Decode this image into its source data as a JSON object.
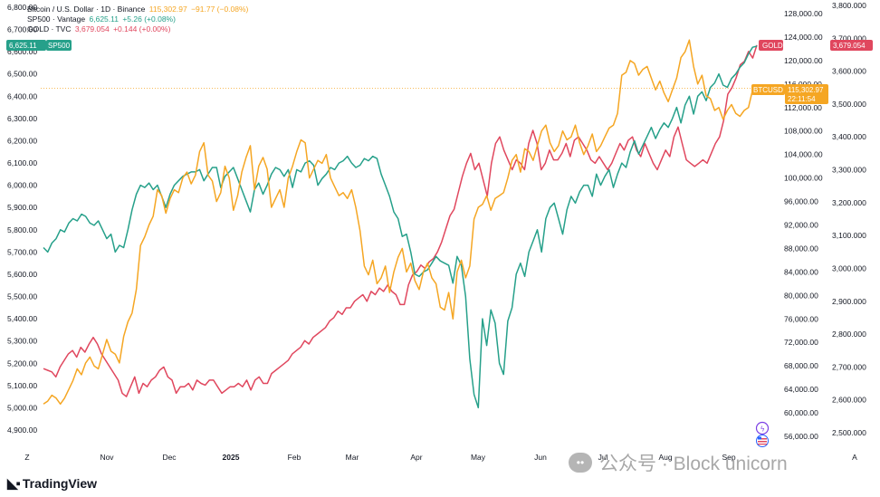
{
  "legend": {
    "btc": {
      "name": "Bitcoin / U.S. Dollar · 1D · Binance",
      "value": "115,302.97",
      "change": "−91.77 (−0.08%)"
    },
    "spx": {
      "name": "SP500 · Vantage",
      "value": "6,625.11",
      "change": "+5.26 (+0.08%)"
    },
    "gold": {
      "name": "GOLD · TVC",
      "value": "3,679.054",
      "change": "+0.144 (+0.00%)"
    }
  },
  "colors": {
    "btc": "#f5a623",
    "spx": "#26a08a",
    "gold": "#e0475e",
    "text": "#131722",
    "watermark": "#a8a8a8"
  },
  "tags": {
    "spx_value": "6,625.11",
    "spx_label": "SP500",
    "gold_label": "GOLD",
    "gold_value": "3,679.054",
    "btc_label": "BTCUSD",
    "btc_value": "115,302.97",
    "btc_timer": "22:11:54"
  },
  "brand": "TradingView",
  "watermark": "公众号 · Block unicorn",
  "chart_data": {
    "type": "line",
    "x_ticks": [
      "Z",
      "Nov",
      "Dec",
      "2025",
      "Feb",
      "Mar",
      "Apr",
      "May",
      "Jun",
      "Jul",
      "Aug",
      "Sep",
      "A"
    ],
    "axes": {
      "spx": {
        "side": "left",
        "ylim": [
          4900,
          6800
        ],
        "ticks": [
          "6,800.00",
          "6,700.00",
          "6,600.00",
          "6,500.00",
          "6,400.00",
          "6,300.00",
          "6,200.00",
          "6,100.00",
          "6,000.00",
          "5,900.00",
          "5,800.00",
          "5,700.00",
          "5,600.00",
          "5,500.00",
          "5,400.00",
          "5,300.00",
          "5,200.00",
          "5,100.00",
          "5,000.00",
          "4,900.00"
        ]
      },
      "btc": {
        "side": "right-inner",
        "ylim": [
          56000,
          128000
        ],
        "ticks": [
          "128,000.00",
          "124,000.00",
          "120,000.00",
          "116,000.00",
          "112,000.00",
          "108,000.00",
          "104,000.00",
          "100,000.00",
          "96,000.00",
          "92,000.00",
          "88,000.00",
          "84,000.00",
          "80,000.00",
          "76,000.00",
          "72,000.00",
          "68,000.00",
          "64,000.00",
          "60,000.00",
          "56,000.00"
        ]
      },
      "gold": {
        "side": "right-outer",
        "ylim": [
          2500,
          3800
        ],
        "ticks": [
          "3,800.000",
          "3,700.000",
          "3,600.000",
          "3,500.000",
          "3,400.000",
          "3,300.000",
          "3,200.000",
          "3,100.000",
          "3,000.000",
          "2,900.000",
          "2,800.000",
          "2,700.000",
          "2,600.000",
          "2,500.000"
        ]
      }
    },
    "series": [
      {
        "name": "SP500",
        "axis": "spx",
        "color": "#26a08a",
        "values": [
          5720,
          5700,
          5740,
          5760,
          5800,
          5790,
          5830,
          5850,
          5840,
          5870,
          5860,
          5830,
          5820,
          5840,
          5800,
          5760,
          5780,
          5700,
          5730,
          5720,
          5800,
          5890,
          5960,
          6000,
          5990,
          6010,
          5980,
          6000,
          5950,
          5900,
          5960,
          6000,
          6020,
          6040,
          6050,
          6060,
          6060,
          6070,
          6020,
          6050,
          6080,
          6080,
          5990,
          6040,
          6060,
          6080,
          6030,
          5980,
          5930,
          5880,
          5980,
          6010,
          5960,
          6000,
          6050,
          6080,
          6070,
          6040,
          6070,
          5990,
          6070,
          6060,
          6100,
          6110,
          6090,
          6000,
          6030,
          6050,
          6080,
          6070,
          6100,
          6110,
          6130,
          6100,
          6080,
          6090,
          6120,
          6110,
          6130,
          6120,
          6050,
          6000,
          5950,
          5880,
          5850,
          5770,
          5780,
          5700,
          5600,
          5590,
          5610,
          5620,
          5650,
          5680,
          5660,
          5650,
          5640,
          5560,
          5680,
          5640,
          5500,
          5220,
          5060,
          5000,
          5400,
          5280,
          5440,
          5380,
          5200,
          5150,
          5390,
          5450,
          5600,
          5650,
          5590,
          5700,
          5750,
          5800,
          5700,
          5850,
          5900,
          5920,
          5850,
          5780,
          5890,
          5950,
          5920,
          5970,
          6000,
          6000,
          5950,
          6050,
          6000,
          6040,
          6070,
          5990,
          6050,
          6100,
          6080,
          6150,
          6200,
          6140,
          6180,
          6220,
          6260,
          6210,
          6250,
          6280,
          6260,
          6300,
          6350,
          6280,
          6360,
          6400,
          6320,
          6400,
          6420,
          6380,
          6440,
          6460,
          6500,
          6450,
          6440,
          6480,
          6500,
          6530,
          6550,
          6590,
          6620,
          6625
        ]
      },
      {
        "name": "BTCUSD",
        "axis": "btc",
        "color": "#f5a623",
        "values": [
          61500,
          62000,
          63000,
          62500,
          61500,
          62500,
          64000,
          65500,
          67500,
          66500,
          68500,
          69500,
          68000,
          67500,
          70000,
          72500,
          70500,
          70000,
          68500,
          73000,
          75500,
          77000,
          81000,
          88500,
          90000,
          92000,
          93500,
          98000,
          97000,
          94000,
          96500,
          98000,
          97500,
          100000,
          101000,
          99000,
          100500,
          104500,
          106000,
          100500,
          99500,
          96000,
          97500,
          102000,
          100000,
          94500,
          97000,
          101000,
          103500,
          105500,
          98000,
          102000,
          103500,
          101500,
          95000,
          96500,
          98000,
          95000,
          100000,
          102000,
          104500,
          106500,
          106000,
          100000,
          101500,
          103000,
          102500,
          104000,
          100000,
          98500,
          97000,
          97500,
          96500,
          98000,
          95000,
          91000,
          85000,
          83500,
          86000,
          82000,
          83000,
          85000,
          80500,
          84000,
          86500,
          88000,
          84000,
          85500,
          82500,
          81000,
          84000,
          85500,
          83000,
          82000,
          78000,
          77500,
          80500,
          76000,
          84000,
          86000,
          83000,
          85000,
          93000,
          95000,
          95500,
          97000,
          94500,
          96500,
          97000,
          97500,
          100000,
          103000,
          104000,
          101000,
          105000,
          104500,
          103000,
          105500,
          108000,
          109000,
          106000,
          104500,
          105500,
          108000,
          106500,
          107000,
          109000,
          106000,
          104000,
          105500,
          107500,
          104500,
          105500,
          107000,
          108500,
          109000,
          111000,
          117500,
          118000,
          120000,
          119500,
          117500,
          118500,
          119000,
          117000,
          115000,
          116500,
          114500,
          113000,
          115000,
          117000,
          120500,
          121500,
          123500,
          119000,
          116000,
          117500,
          114000,
          113500,
          111500,
          112000,
          110000,
          111500,
          112500,
          111000,
          110500,
          111500,
          112000,
          115000,
          115303
        ]
      },
      {
        "name": "GOLD",
        "axis": "gold",
        "color": "#e0475e",
        "values": [
          2695,
          2690,
          2685,
          2670,
          2700,
          2720,
          2740,
          2750,
          2730,
          2760,
          2745,
          2770,
          2790,
          2770,
          2740,
          2720,
          2700,
          2680,
          2660,
          2620,
          2610,
          2640,
          2670,
          2620,
          2650,
          2640,
          2660,
          2670,
          2690,
          2700,
          2670,
          2660,
          2620,
          2640,
          2640,
          2650,
          2630,
          2660,
          2650,
          2645,
          2660,
          2660,
          2640,
          2620,
          2630,
          2640,
          2640,
          2650,
          2640,
          2660,
          2630,
          2660,
          2670,
          2650,
          2650,
          2680,
          2690,
          2700,
          2710,
          2720,
          2740,
          2750,
          2760,
          2780,
          2770,
          2790,
          2800,
          2810,
          2820,
          2840,
          2850,
          2870,
          2860,
          2880,
          2880,
          2900,
          2910,
          2920,
          2900,
          2930,
          2920,
          2940,
          2930,
          2950,
          2930,
          2920,
          2890,
          2890,
          2950,
          2980,
          2990,
          3010,
          3000,
          3020,
          3030,
          3050,
          3080,
          3120,
          3160,
          3180,
          3230,
          3280,
          3320,
          3350,
          3300,
          3320,
          3270,
          3220,
          3320,
          3380,
          3400,
          3360,
          3330,
          3300,
          3330,
          3320,
          3300,
          3380,
          3420,
          3380,
          3300,
          3320,
          3360,
          3330,
          3330,
          3350,
          3380,
          3340,
          3390,
          3400,
          3380,
          3360,
          3330,
          3320,
          3340,
          3320,
          3300,
          3320,
          3350,
          3380,
          3360,
          3390,
          3400,
          3360,
          3340,
          3380,
          3350,
          3320,
          3300,
          3330,
          3360,
          3340,
          3400,
          3430,
          3380,
          3330,
          3320,
          3310,
          3320,
          3330,
          3320,
          3350,
          3380,
          3400,
          3450,
          3530,
          3550,
          3580,
          3620,
          3630,
          3660,
          3640,
          3679
        ]
      }
    ]
  }
}
